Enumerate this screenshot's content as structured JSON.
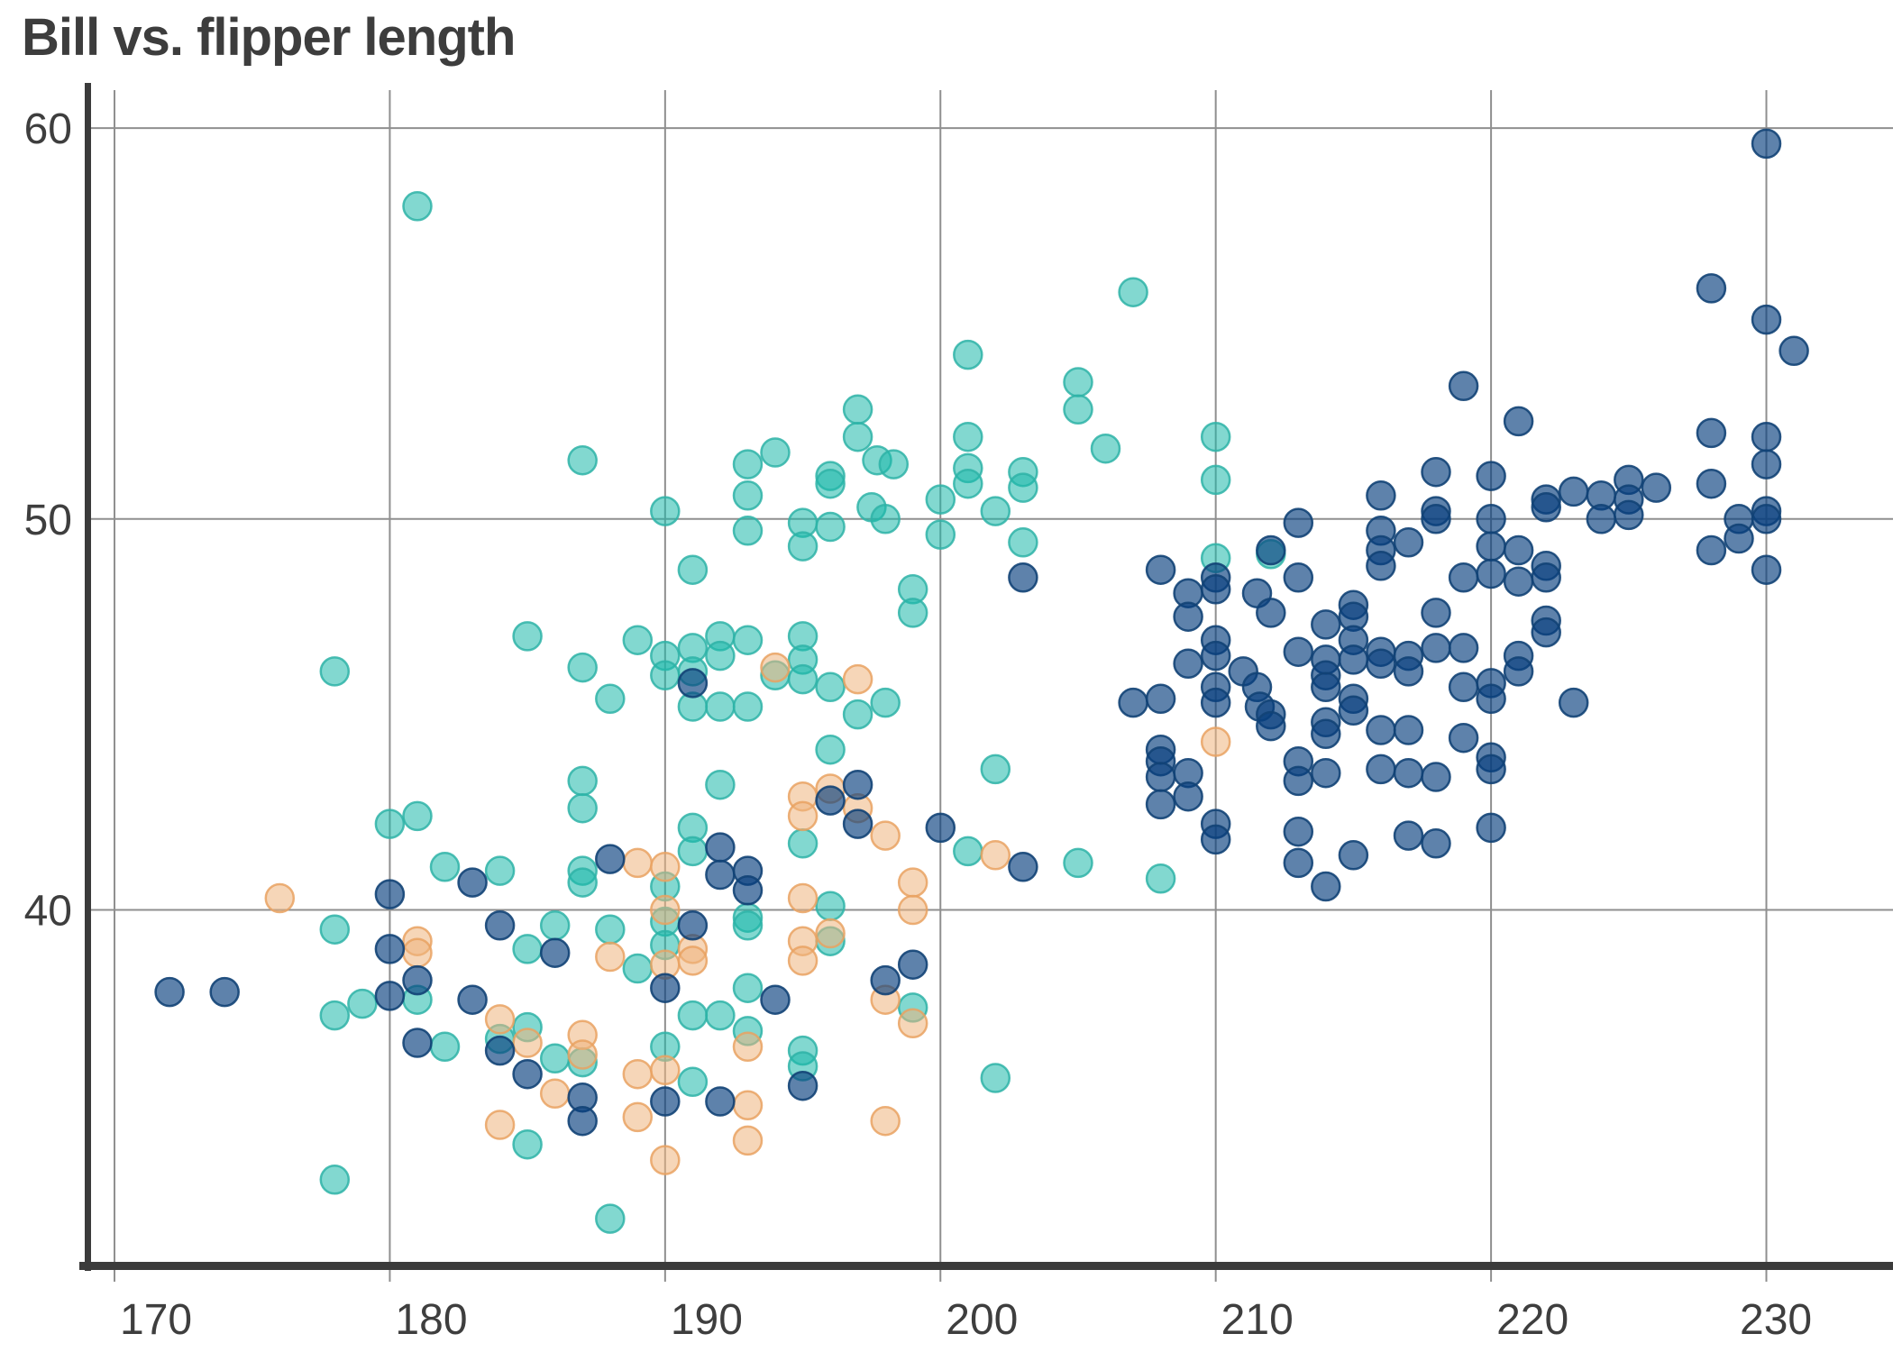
{
  "title": "Bill vs. flipper length",
  "chart_data": {
    "type": "scatter",
    "title": "Bill vs. flipper length",
    "xlabel": "",
    "ylabel": "",
    "x_ticks": [
      170,
      180,
      190,
      200,
      210,
      220,
      230
    ],
    "y_ticks": [
      40,
      50,
      60
    ],
    "xlim": [
      169.05,
      234.6
    ],
    "ylim": [
      30.95,
      60.97
    ],
    "grid": true,
    "legend": false,
    "grid_color": "#8f8f8f",
    "spine_color": "#3b3b3b",
    "marker": {
      "radius": 15.5,
      "stroke_width": 2.5
    },
    "series": [
      {
        "name": "teal",
        "fill": "#1cb8aa",
        "stroke": "#2eb3a7",
        "fill_opacity": 0.55,
        "stroke_opacity": 0.85,
        "points": [
          [
            181,
            58.0
          ],
          [
            187,
            51.5
          ],
          [
            207,
            55.8
          ],
          [
            201,
            54.2
          ],
          [
            205,
            53.5
          ],
          [
            205,
            52.8
          ],
          [
            197,
            52.8
          ],
          [
            197,
            52.1
          ],
          [
            206,
            51.8
          ],
          [
            210,
            52.1
          ],
          [
            210,
            51.0
          ],
          [
            194,
            51.7
          ],
          [
            193,
            51.4
          ],
          [
            193,
            50.6
          ],
          [
            196,
            51.1
          ],
          [
            196,
            50.9
          ],
          [
            197.7,
            51.5
          ],
          [
            198.3,
            51.4
          ],
          [
            197.5,
            50.3
          ],
          [
            198,
            50.0
          ],
          [
            200,
            50.5
          ],
          [
            201,
            52.1
          ],
          [
            201,
            51.3
          ],
          [
            201,
            50.9
          ],
          [
            203,
            51.2
          ],
          [
            203,
            50.8
          ],
          [
            202,
            50.2
          ],
          [
            190,
            50.2
          ],
          [
            185,
            47.0
          ],
          [
            178,
            46.1
          ],
          [
            189,
            46.9
          ],
          [
            187,
            46.2
          ],
          [
            190,
            46.5
          ],
          [
            190,
            46.0
          ],
          [
            188,
            45.4
          ],
          [
            187,
            43.3
          ],
          [
            187,
            42.6
          ],
          [
            180,
            42.2
          ],
          [
            181,
            42.4
          ],
          [
            182,
            41.1
          ],
          [
            184,
            41.0
          ],
          [
            187,
            41.0
          ],
          [
            187,
            40.7
          ],
          [
            190,
            40.6
          ],
          [
            178,
            39.5
          ],
          [
            185,
            39.0
          ],
          [
            186,
            39.6
          ],
          [
            188,
            39.5
          ],
          [
            189,
            38.5
          ],
          [
            181,
            37.7
          ],
          [
            179,
            37.6
          ],
          [
            178,
            37.3
          ],
          [
            182,
            36.5
          ],
          [
            184,
            36.7
          ],
          [
            185,
            37.0
          ],
          [
            186,
            36.2
          ],
          [
            187,
            36.1
          ],
          [
            185,
            34.0
          ],
          [
            178,
            33.1
          ],
          [
            188,
            32.1
          ],
          [
            190,
            39.7
          ],
          [
            190,
            39.1
          ],
          [
            190,
            36.5
          ],
          [
            193,
            49.7
          ],
          [
            195,
            49.9
          ],
          [
            195,
            49.3
          ],
          [
            196,
            49.8
          ],
          [
            200,
            49.6
          ],
          [
            203,
            49.4
          ],
          [
            210,
            49.0
          ],
          [
            202,
            43.6
          ],
          [
            196,
            44.1
          ],
          [
            192,
            43.2
          ],
          [
            191,
            42.1
          ],
          [
            191,
            41.5
          ],
          [
            201,
            41.5
          ],
          [
            205,
            41.2
          ],
          [
            208,
            40.8
          ],
          [
            199,
            48.2
          ],
          [
            199,
            47.6
          ],
          [
            191,
            48.7
          ],
          [
            192,
            47.0
          ],
          [
            192,
            46.5
          ],
          [
            191,
            46.7
          ],
          [
            191,
            46.1
          ],
          [
            193,
            46.9
          ],
          [
            195,
            47.0
          ],
          [
            195,
            46.4
          ],
          [
            195,
            45.9
          ],
          [
            194,
            46.0
          ],
          [
            196,
            45.7
          ],
          [
            198,
            45.3
          ],
          [
            191,
            45.2
          ],
          [
            192,
            45.2
          ],
          [
            193,
            45.2
          ],
          [
            197,
            45.0
          ],
          [
            195,
            41.7
          ],
          [
            212,
            49.1
          ],
          [
            193,
            39.8
          ],
          [
            193,
            39.6
          ],
          [
            196,
            40.1
          ],
          [
            193,
            38.0
          ],
          [
            191,
            37.3
          ],
          [
            192,
            37.3
          ],
          [
            193,
            36.9
          ],
          [
            196,
            39.2
          ],
          [
            199,
            37.5
          ],
          [
            195,
            36.4
          ],
          [
            195,
            36.0
          ],
          [
            191,
            35.6
          ],
          [
            202,
            35.7
          ]
        ]
      },
      {
        "name": "peach",
        "fill": "#efb47e",
        "stroke": "#e9a262",
        "fill_opacity": 0.55,
        "stroke_opacity": 0.85,
        "points": [
          [
            176,
            40.3
          ],
          [
            189,
            41.2
          ],
          [
            190,
            41.1
          ],
          [
            181,
            39.2
          ],
          [
            181,
            38.9
          ],
          [
            188,
            38.8
          ],
          [
            184,
            37.2
          ],
          [
            185,
            36.6
          ],
          [
            187,
            36.8
          ],
          [
            187,
            36.3
          ],
          [
            186,
            35.3
          ],
          [
            189,
            35.8
          ],
          [
            189,
            34.7
          ],
          [
            184,
            34.5
          ],
          [
            190,
            38.6
          ],
          [
            190,
            35.9
          ],
          [
            190,
            33.6
          ],
          [
            190,
            40.0
          ],
          [
            210,
            44.3
          ],
          [
            195,
            42.9
          ],
          [
            195,
            42.4
          ],
          [
            195,
            40.3
          ],
          [
            196,
            43.1
          ],
          [
            197,
            42.6
          ],
          [
            198,
            41.9
          ],
          [
            199,
            40.7
          ],
          [
            202,
            41.4
          ],
          [
            194,
            46.2
          ],
          [
            197,
            45.9
          ],
          [
            191,
            39.0
          ],
          [
            191,
            38.7
          ],
          [
            195,
            39.2
          ],
          [
            195,
            38.7
          ],
          [
            196,
            39.4
          ],
          [
            199,
            40.0
          ],
          [
            198,
            37.7
          ],
          [
            199,
            37.1
          ],
          [
            193,
            36.5
          ],
          [
            193,
            35.0
          ],
          [
            193,
            34.1
          ],
          [
            198,
            34.6
          ]
        ]
      },
      {
        "name": "navy",
        "fill": "#073f7e",
        "stroke": "#124275",
        "fill_opacity": 0.65,
        "stroke_opacity": 0.9,
        "points": [
          [
            183,
            40.7
          ],
          [
            180,
            40.4
          ],
          [
            188,
            41.3
          ],
          [
            172,
            37.9
          ],
          [
            174,
            37.9
          ],
          [
            180,
            39.0
          ],
          [
            181,
            38.2
          ],
          [
            180,
            37.8
          ],
          [
            183,
            37.7
          ],
          [
            181,
            36.6
          ],
          [
            184,
            36.4
          ],
          [
            185,
            35.8
          ],
          [
            187,
            35.2
          ],
          [
            187,
            34.6
          ],
          [
            184,
            39.6
          ],
          [
            186,
            38.9
          ],
          [
            190,
            38.0
          ],
          [
            190,
            35.1
          ],
          [
            203,
            48.5
          ],
          [
            208,
            48.7
          ],
          [
            210,
            48.5
          ],
          [
            210,
            48.2
          ],
          [
            209,
            48.1
          ],
          [
            209,
            47.5
          ],
          [
            209,
            46.3
          ],
          [
            210,
            46.9
          ],
          [
            210,
            46.5
          ],
          [
            211,
            46.1
          ],
          [
            210,
            45.7
          ],
          [
            210,
            45.3
          ],
          [
            207,
            45.3
          ],
          [
            208,
            45.4
          ],
          [
            208,
            44.1
          ],
          [
            208,
            43.8
          ],
          [
            208,
            43.4
          ],
          [
            209,
            43.5
          ],
          [
            209,
            42.9
          ],
          [
            208,
            42.7
          ],
          [
            193,
            41.0
          ],
          [
            192,
            41.6
          ],
          [
            192,
            40.9
          ],
          [
            193,
            40.5
          ],
          [
            196,
            42.8
          ],
          [
            197,
            43.2
          ],
          [
            197,
            42.2
          ],
          [
            200,
            42.1
          ],
          [
            203,
            41.1
          ],
          [
            210,
            42.2
          ],
          [
            210,
            41.8
          ],
          [
            191,
            45.8
          ],
          [
            212,
            49.2
          ],
          [
            191,
            39.6
          ],
          [
            194,
            37.7
          ],
          [
            198,
            38.2
          ],
          [
            199,
            38.6
          ],
          [
            195,
            35.5
          ],
          [
            192,
            35.1
          ],
          [
            230,
            59.6
          ],
          [
            228,
            55.9
          ],
          [
            230,
            55.1
          ],
          [
            231,
            54.3
          ],
          [
            219,
            53.4
          ],
          [
            221,
            52.5
          ],
          [
            228,
            52.2
          ],
          [
            230,
            52.1
          ],
          [
            230,
            51.4
          ],
          [
            218,
            51.2
          ],
          [
            220,
            51.1
          ],
          [
            216,
            50.6
          ],
          [
            218,
            50.2
          ],
          [
            218,
            50.0
          ],
          [
            222,
            50.5
          ],
          [
            222,
            50.3
          ],
          [
            223,
            50.7
          ],
          [
            224,
            50.6
          ],
          [
            224,
            50.0
          ],
          [
            225,
            51.0
          ],
          [
            225,
            50.5
          ],
          [
            226,
            50.8
          ],
          [
            228,
            50.9
          ],
          [
            230,
            50.2
          ],
          [
            230,
            50.0
          ],
          [
            229,
            50.0
          ],
          [
            213,
            49.9
          ],
          [
            213,
            48.5
          ],
          [
            216,
            49.7
          ],
          [
            216,
            49.2
          ],
          [
            216,
            48.8
          ],
          [
            217,
            49.4
          ],
          [
            220,
            50.0
          ],
          [
            220,
            49.3
          ],
          [
            221,
            49.2
          ],
          [
            219,
            48.5
          ],
          [
            220,
            48.6
          ],
          [
            222,
            48.8
          ],
          [
            222,
            48.5
          ],
          [
            221,
            48.4
          ],
          [
            218,
            47.6
          ],
          [
            215,
            47.8
          ],
          [
            215,
            47.5
          ],
          [
            214,
            47.3
          ],
          [
            211.5,
            48.1
          ],
          [
            212,
            47.6
          ],
          [
            213,
            46.6
          ],
          [
            214,
            46.4
          ],
          [
            214,
            46.0
          ],
          [
            214,
            45.7
          ],
          [
            215,
            46.9
          ],
          [
            215,
            46.4
          ],
          [
            216,
            46.6
          ],
          [
            216,
            46.3
          ],
          [
            217,
            46.5
          ],
          [
            217,
            46.1
          ],
          [
            218,
            46.7
          ],
          [
            219,
            46.7
          ],
          [
            220,
            45.8
          ],
          [
            220,
            45.4
          ],
          [
            221,
            46.5
          ],
          [
            221,
            46.1
          ],
          [
            222,
            47.4
          ],
          [
            222,
            47.1
          ],
          [
            223,
            45.3
          ],
          [
            211.5,
            45.7
          ],
          [
            211.6,
            45.2
          ],
          [
            212,
            45.0
          ],
          [
            212,
            44.7
          ],
          [
            214,
            44.8
          ],
          [
            214,
            44.5
          ],
          [
            215,
            45.4
          ],
          [
            215,
            45.1
          ],
          [
            216,
            44.6
          ],
          [
            217,
            44.6
          ],
          [
            219,
            45.7
          ],
          [
            219,
            44.4
          ],
          [
            220,
            43.9
          ],
          [
            220,
            43.6
          ],
          [
            213,
            43.8
          ],
          [
            213,
            43.3
          ],
          [
            214,
            43.5
          ],
          [
            216,
            43.6
          ],
          [
            217,
            43.5
          ],
          [
            218,
            43.4
          ],
          [
            220,
            42.1
          ],
          [
            217,
            41.9
          ],
          [
            218,
            41.7
          ],
          [
            213,
            42.0
          ],
          [
            213,
            41.2
          ],
          [
            215,
            41.4
          ],
          [
            214,
            40.6
          ],
          [
            229,
            49.5
          ],
          [
            228,
            49.2
          ],
          [
            230,
            48.7
          ],
          [
            225,
            50.1
          ]
        ]
      }
    ]
  }
}
